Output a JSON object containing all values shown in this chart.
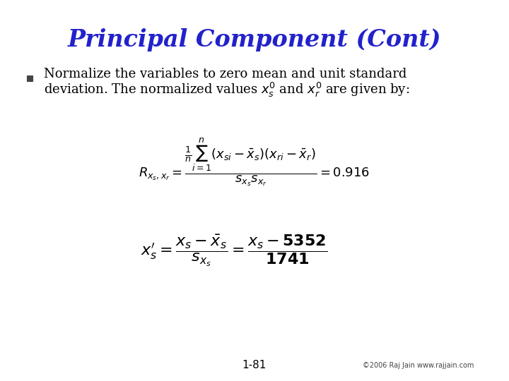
{
  "title": "Principal Component (Cont)",
  "title_color": "#2222cc",
  "title_fontsize": 24,
  "background_color": "#ffffff",
  "bullet_text_line1": "Normalize the variables to zero mean and unit standard",
  "bullet_text_line2_plain": "deviation. The normalized values ",
  "bullet_text_line2_end": " are given by:",
  "bullet_color": "#000000",
  "bullet_fontsize": 13,
  "footer_text": "©2006 Raj Jain www.rajjain.com",
  "page_number": "1-81",
  "formula_fontsize": 13,
  "footer_fontsize": 7
}
